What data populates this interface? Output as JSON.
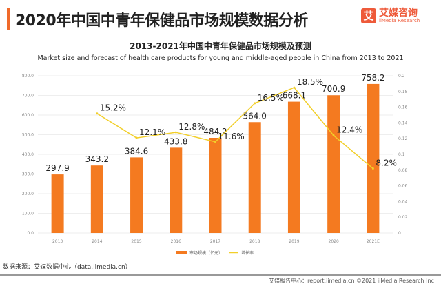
{
  "header": {
    "title": "2020年中国中青年保健品市场规模数据分析",
    "logo_cn": "艾媒咨询",
    "logo_en": "iiMedia Research",
    "logo_mark": "艾"
  },
  "chart_data": {
    "type": "bar+line",
    "title": "2013-2021年中国中青年保健品市场规模及预测",
    "subtitle": "Market size and forecast of health care products for young and middle-aged people in China from 2013 to 2021",
    "categories": [
      "2013",
      "2014",
      "2015",
      "2016",
      "2017",
      "2018",
      "2019",
      "2020",
      "2021E"
    ],
    "series": [
      {
        "name": "市场规模（亿元）",
        "type": "bar",
        "axis": "left",
        "color": "#f47a20",
        "values": [
          297.9,
          343.2,
          384.6,
          433.8,
          484.2,
          564.0,
          668.1,
          700.9,
          758.2
        ],
        "labels": [
          "297.9",
          "343.2",
          "384.6",
          "433.8",
          "484.2",
          "564.0",
          "668.1",
          "700.9",
          "758.2"
        ]
      },
      {
        "name": "增长率",
        "type": "line",
        "axis": "right",
        "color": "#f2cf2a",
        "values": [
          null,
          0.152,
          0.121,
          0.128,
          0.116,
          0.165,
          0.185,
          0.124,
          0.082
        ],
        "labels": [
          "",
          "15.2%",
          "12.1%",
          "12.8%",
          "11.6%",
          "16.5%",
          "18.5%",
          "12.4%",
          "8.2%"
        ]
      }
    ],
    "y_left": {
      "range": [
        0,
        800
      ],
      "ticks": [
        "0.0",
        "100.0",
        "200.0",
        "300.0",
        "400.0",
        "500.0",
        "600.0",
        "700.0",
        "800.0"
      ]
    },
    "y_right": {
      "range": [
        0,
        0.2
      ],
      "ticks": [
        "0",
        "0.02",
        "0.04",
        "0.06",
        "0.08",
        "0.1",
        "0.12",
        "0.14",
        "0.16",
        "0.18",
        "0.2"
      ]
    },
    "grid": true,
    "legend": "bottom"
  },
  "source": "数据来源：艾媒数据中心（data.iimedia.cn）",
  "footer": "艾媒报告中心：report.iimedia.cn  ©2021  iiMedia Research Inc"
}
